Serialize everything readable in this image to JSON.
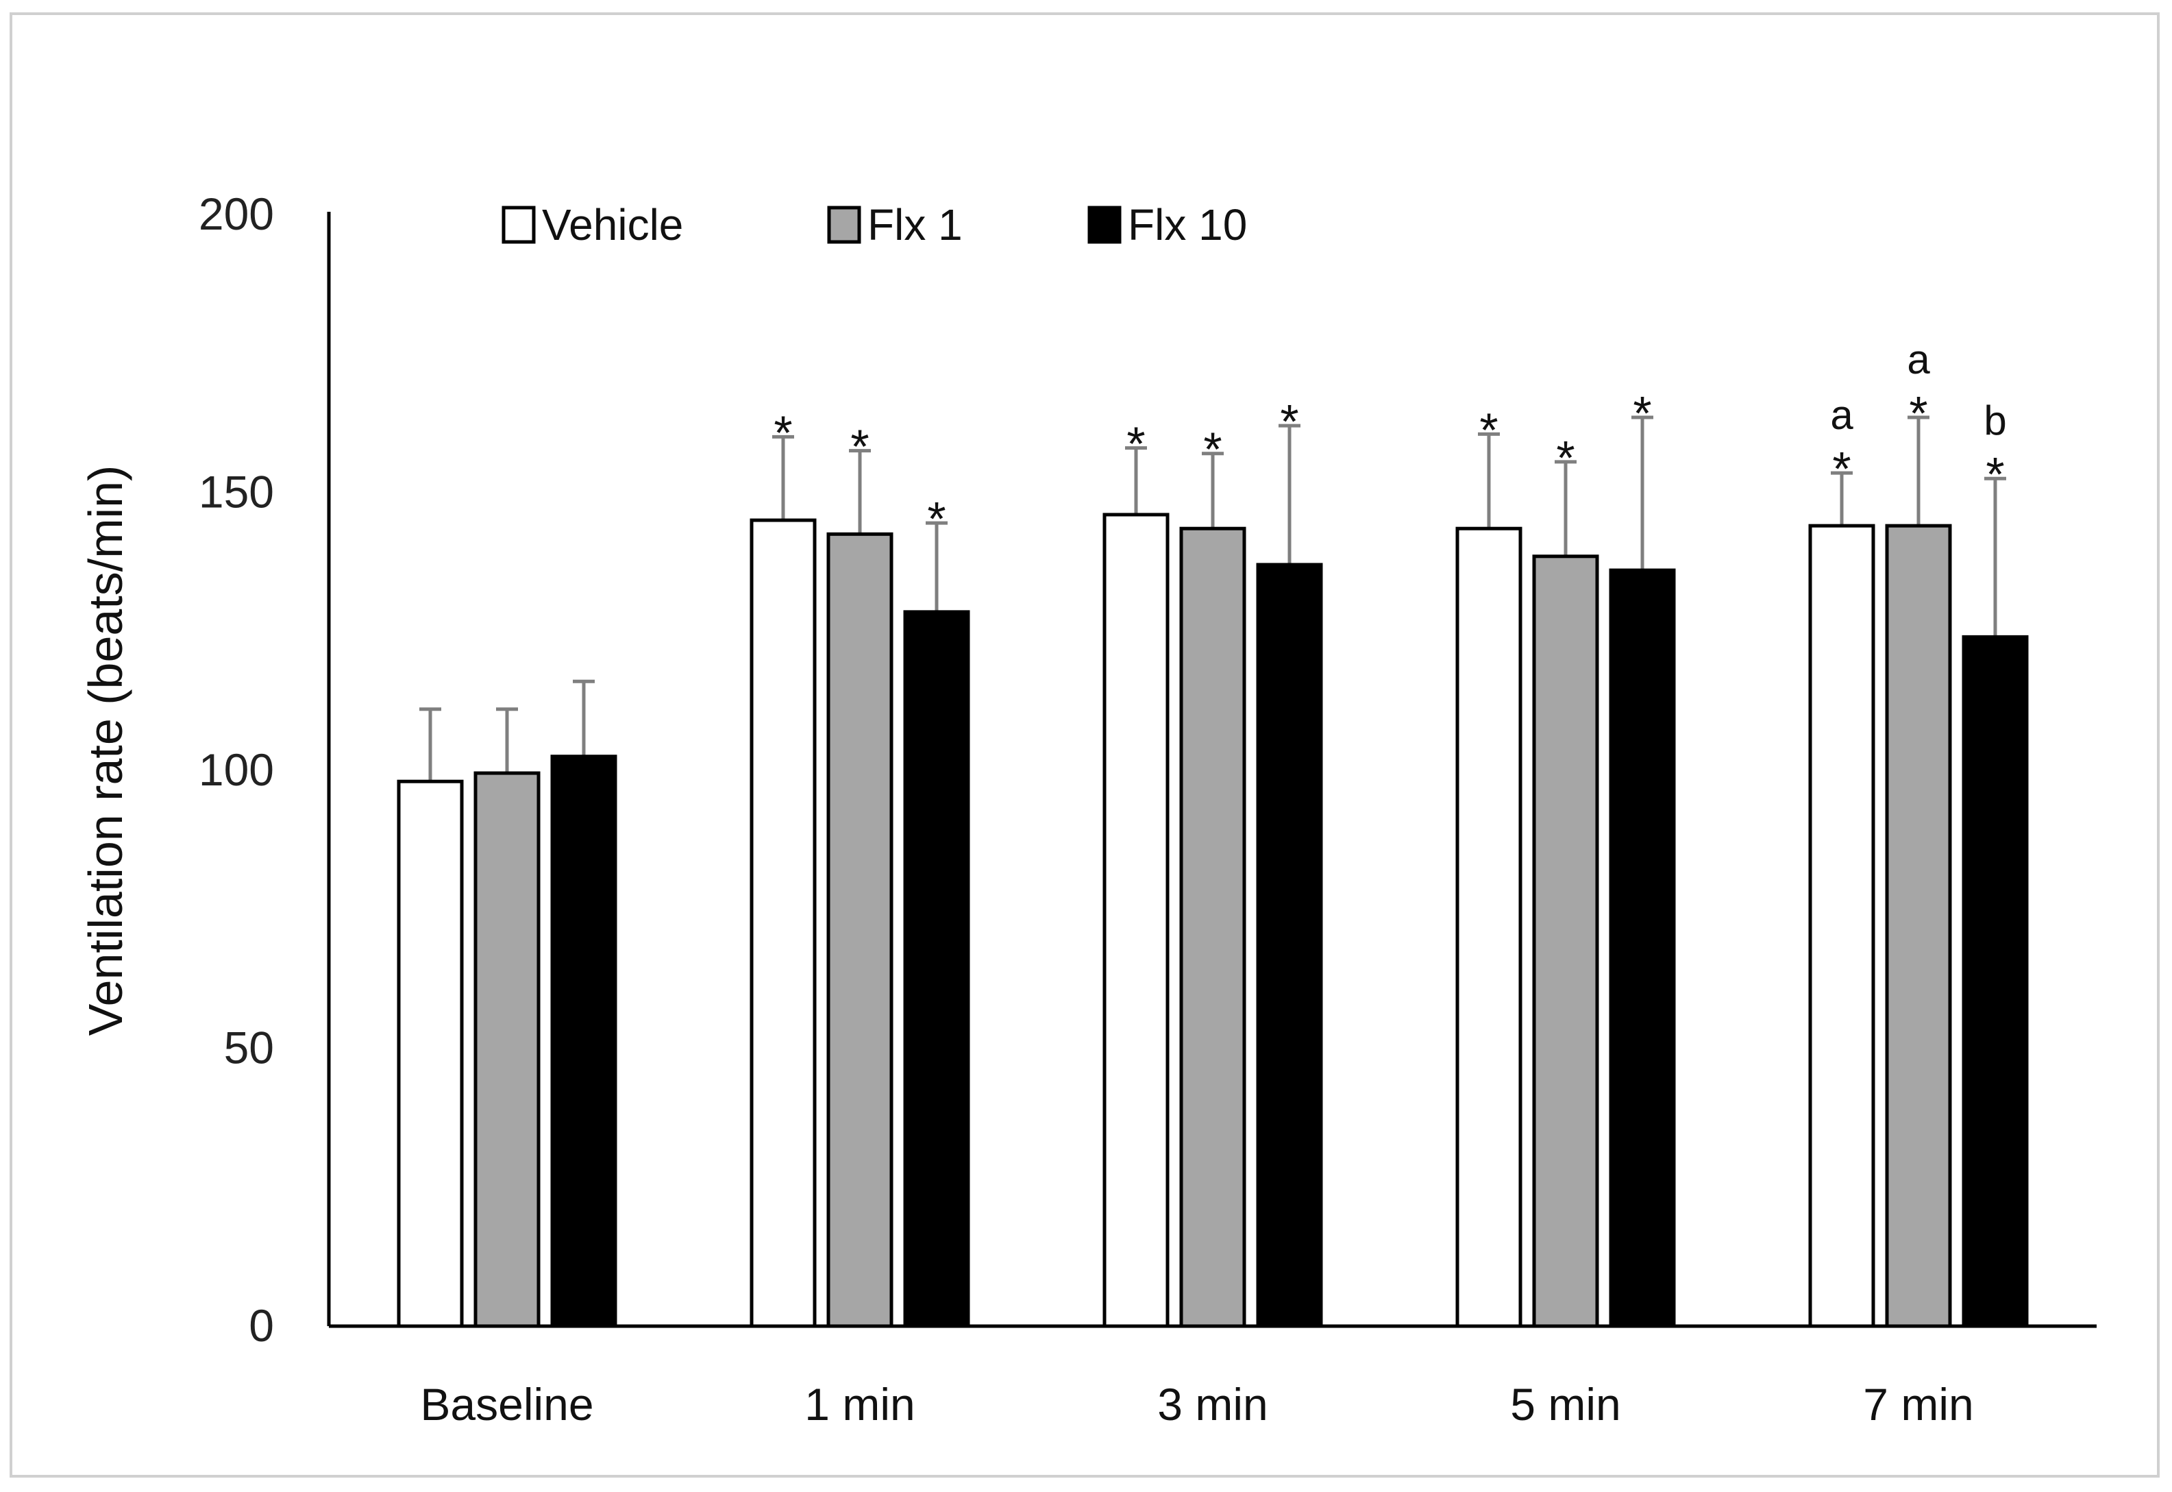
{
  "chart_data": {
    "type": "bar",
    "title": "",
    "xlabel": "",
    "ylabel": "Ventilation rate (beats/min)",
    "ylim": [
      0,
      200
    ],
    "yticks": [
      0,
      50,
      100,
      150,
      200
    ],
    "categories": [
      "Baseline",
      "1 min",
      "3 min",
      "5 min",
      "7 min"
    ],
    "legend_position": "top",
    "series": [
      {
        "name": "Vehicle",
        "color": "#ffffff",
        "values": [
          98,
          145,
          146,
          143.5,
          144
        ],
        "errors": [
          13,
          15,
          12,
          17,
          9.5
        ],
        "annotations": [
          [],
          [
            "*"
          ],
          [
            "*"
          ],
          [
            "*"
          ],
          [
            "*",
            "a"
          ]
        ]
      },
      {
        "name": "Flx 1",
        "color": "#a6a6a6",
        "values": [
          99.5,
          142.5,
          143.5,
          138.5,
          144
        ],
        "errors": [
          11.5,
          15,
          13.5,
          17,
          19.5
        ],
        "annotations": [
          [],
          [
            "*"
          ],
          [
            "*"
          ],
          [
            "*"
          ],
          [
            "*",
            "a"
          ]
        ]
      },
      {
        "name": "Flx 10",
        "color": "#000000",
        "values": [
          102.5,
          128.5,
          137,
          136,
          124
        ],
        "errors": [
          13.5,
          16,
          25,
          27.5,
          28.5
        ],
        "annotations": [
          [],
          [
            "*"
          ],
          [
            "*"
          ],
          [
            "*"
          ],
          [
            "*",
            "b"
          ]
        ]
      }
    ]
  }
}
